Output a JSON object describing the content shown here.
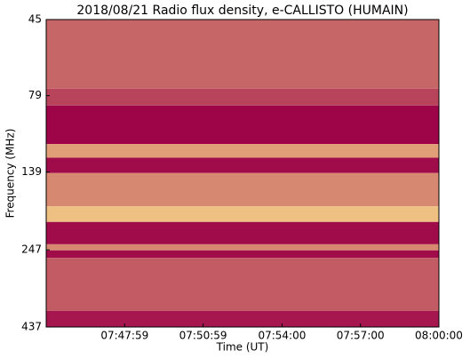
{
  "chart_data": {
    "type": "spectrogram",
    "title": "2018/08/21  Radio flux density, e-CALLISTO (HUMAIN)",
    "x_label": "Time (UT)",
    "y_label": "Frequency (MHz)",
    "band_edges": [
      45,
      75,
      85,
      113,
      125,
      140,
      179,
      201,
      237,
      248,
      262,
      388,
      437
    ],
    "levels": [
      0.45,
      0.3,
      0.02,
      0.7,
      0.05,
      0.6,
      0.85,
      0.05,
      0.6,
      0.05,
      0.4,
      0.1
    ],
    "colors": [
      "#9b0047",
      "#fde38c"
    ],
    "xlim": [
      "07:44:59",
      "08:00:00"
    ],
    "xticks": [
      "07:47:59",
      "07:50:59",
      "07:54:00",
      "07:57:00",
      "08:00:00"
    ],
    "ylim": [
      45,
      437
    ],
    "yticks": [
      45,
      79,
      139,
      247,
      437
    ],
    "log_y": true,
    "y_inverted": true
  }
}
